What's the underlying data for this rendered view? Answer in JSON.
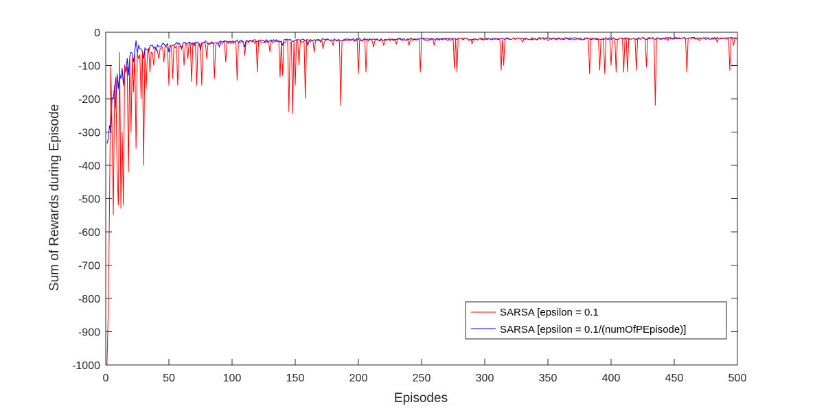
{
  "chart_data": {
    "type": "line",
    "title": "",
    "xlabel": "Episodes",
    "ylabel": "Sum of Rewards during Episode",
    "xlim": [
      0,
      500
    ],
    "ylim": [
      -1000,
      0
    ],
    "xticks": [
      0,
      50,
      100,
      150,
      200,
      250,
      300,
      350,
      400,
      450,
      500
    ],
    "yticks": [
      0,
      -100,
      -200,
      -300,
      -400,
      -500,
      -600,
      -700,
      -800,
      -900,
      -1000
    ],
    "grid": false,
    "legend_position": "bottom-right",
    "series": [
      {
        "name": "SARSA [epsilon = 0.1",
        "color": "#ff0000",
        "base": [
          [
            1,
            -300
          ],
          [
            3,
            -180
          ],
          [
            6,
            -140
          ],
          [
            10,
            -110
          ],
          [
            15,
            -95
          ],
          [
            20,
            -80
          ],
          [
            25,
            -70
          ],
          [
            30,
            -60
          ],
          [
            40,
            -50
          ],
          [
            50,
            -42
          ],
          [
            60,
            -38
          ],
          [
            80,
            -34
          ],
          [
            100,
            -30
          ],
          [
            150,
            -27
          ],
          [
            200,
            -24
          ],
          [
            250,
            -22
          ],
          [
            300,
            -20
          ],
          [
            400,
            -19
          ],
          [
            500,
            -18
          ]
        ],
        "spikes": [
          [
            1,
            -1000
          ],
          [
            2,
            -840
          ],
          [
            3,
            -520
          ],
          [
            4,
            -100
          ],
          [
            5,
            -290
          ],
          [
            6,
            -550
          ],
          [
            7,
            -170
          ],
          [
            9,
            -420
          ],
          [
            10,
            -520
          ],
          [
            11,
            -60
          ],
          [
            12,
            -530
          ],
          [
            13,
            -300
          ],
          [
            14,
            -520
          ],
          [
            16,
            -120
          ],
          [
            18,
            -420
          ],
          [
            20,
            -300
          ],
          [
            22,
            -180
          ],
          [
            24,
            -350
          ],
          [
            26,
            -80
          ],
          [
            28,
            -200
          ],
          [
            30,
            -400
          ],
          [
            32,
            -170
          ],
          [
            35,
            -120
          ],
          [
            38,
            -100
          ],
          [
            42,
            -80
          ],
          [
            46,
            -90
          ],
          [
            50,
            -160
          ],
          [
            53,
            -140
          ],
          [
            57,
            -160
          ],
          [
            62,
            -100
          ],
          [
            65,
            -80
          ],
          [
            68,
            -150
          ],
          [
            72,
            -160
          ],
          [
            76,
            -160
          ],
          [
            80,
            -80
          ],
          [
            86,
            -140
          ],
          [
            95,
            -90
          ],
          [
            104,
            -145
          ],
          [
            110,
            -70
          ],
          [
            120,
            -120
          ],
          [
            130,
            -60
          ],
          [
            138,
            -135
          ],
          [
            140,
            -130
          ],
          [
            145,
            -240
          ],
          [
            148,
            -245
          ],
          [
            150,
            -160
          ],
          [
            153,
            -100
          ],
          [
            158,
            -200
          ],
          [
            165,
            -60
          ],
          [
            172,
            -50
          ],
          [
            180,
            -40
          ],
          [
            186,
            -220
          ],
          [
            200,
            -125
          ],
          [
            206,
            -120
          ],
          [
            212,
            -45
          ],
          [
            220,
            -40
          ],
          [
            230,
            -35
          ],
          [
            240,
            -40
          ],
          [
            249,
            -120
          ],
          [
            260,
            -40
          ],
          [
            276,
            -110
          ],
          [
            278,
            -120
          ],
          [
            290,
            -35
          ],
          [
            313,
            -115
          ],
          [
            315,
            -100
          ],
          [
            330,
            -30
          ],
          [
            350,
            -25
          ],
          [
            383,
            -125
          ],
          [
            391,
            -115
          ],
          [
            395,
            -125
          ],
          [
            400,
            -100
          ],
          [
            404,
            -120
          ],
          [
            410,
            -120
          ],
          [
            413,
            -120
          ],
          [
            420,
            -115
          ],
          [
            428,
            -105
          ],
          [
            435,
            -220
          ],
          [
            445,
            -25
          ],
          [
            460,
            -120
          ],
          [
            470,
            -25
          ],
          [
            484,
            -30
          ],
          [
            494,
            -115
          ],
          [
            497,
            -40
          ]
        ]
      },
      {
        "name": "SARSA [epsilon = 0.1/(numOfPEpisode)]",
        "color": "#0000ff",
        "base": [
          [
            1,
            -340
          ],
          [
            2,
            -290
          ],
          [
            3,
            -240
          ],
          [
            5,
            -190
          ],
          [
            8,
            -150
          ],
          [
            12,
            -120
          ],
          [
            16,
            -95
          ],
          [
            20,
            -75
          ],
          [
            24,
            -60
          ],
          [
            30,
            -50
          ],
          [
            40,
            -42
          ],
          [
            50,
            -38
          ],
          [
            70,
            -32
          ],
          [
            100,
            -28
          ],
          [
            150,
            -24
          ],
          [
            200,
            -22
          ],
          [
            300,
            -20
          ],
          [
            400,
            -19
          ],
          [
            500,
            -18
          ]
        ],
        "spikes": [
          [
            2,
            -320
          ],
          [
            3,
            -280
          ],
          [
            4,
            -300
          ],
          [
            6,
            -200
          ],
          [
            8,
            -230
          ],
          [
            10,
            -170
          ],
          [
            12,
            -140
          ],
          [
            14,
            -160
          ],
          [
            16,
            -120
          ],
          [
            18,
            -130
          ],
          [
            20,
            -60
          ],
          [
            22,
            -90
          ],
          [
            24,
            -25
          ],
          [
            26,
            -40
          ],
          [
            28,
            -50
          ],
          [
            30,
            -80
          ],
          [
            34,
            -60
          ],
          [
            40,
            -55
          ],
          [
            50,
            -60
          ],
          [
            60,
            -50
          ],
          [
            75,
            -55
          ],
          [
            90,
            -45
          ],
          [
            110,
            -45
          ],
          [
            140,
            -40
          ],
          [
            160,
            -40
          ]
        ]
      }
    ]
  }
}
